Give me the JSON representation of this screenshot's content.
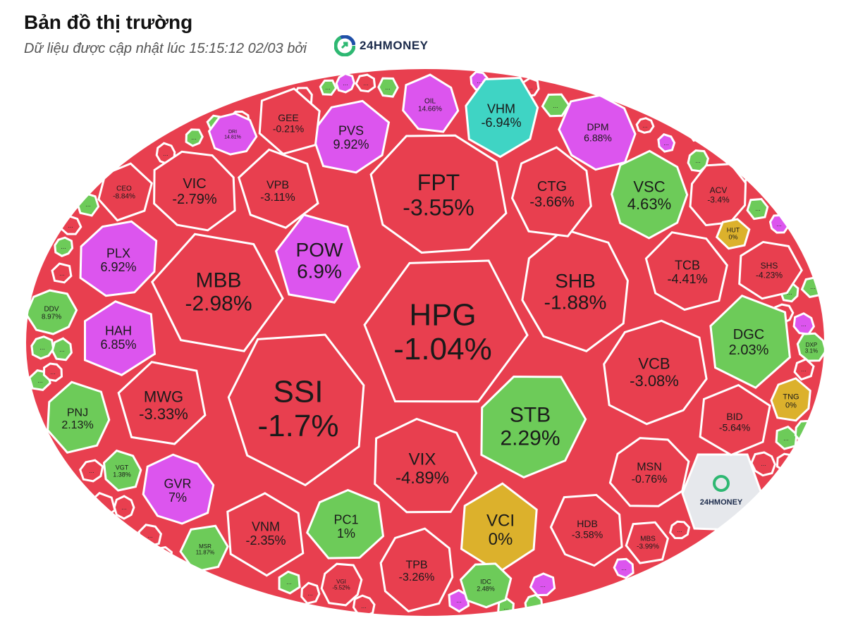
{
  "header": {
    "title": "Bản đồ thị trường",
    "subtitle": "Dữ liệu được cập nhật lúc 15:15:12 02/03 bởi",
    "brand": "24HMONEY"
  },
  "watermark": "24HMONEY",
  "colors": {
    "down": "#e83f4f",
    "up": "#6dcb59",
    "ceiling": "#dc55ee",
    "floor": "#3fd4c4",
    "flat": "#dcb12c",
    "watermark_bg": "#e6e8ec",
    "border": "#ffffff"
  },
  "chart_data": {
    "type": "treemap",
    "title": "Bản đồ thị trường",
    "cells": [
      {
        "ticker": "HPG",
        "change": "-1.04%",
        "status": "down"
      },
      {
        "ticker": "SSI",
        "change": "-1.7%",
        "status": "down"
      },
      {
        "ticker": "FPT",
        "change": "-3.55%",
        "status": "down"
      },
      {
        "ticker": "MBB",
        "change": "-2.98%",
        "status": "down"
      },
      {
        "ticker": "STB",
        "change": "2.29%",
        "status": "up"
      },
      {
        "ticker": "SHB",
        "change": "-1.88%",
        "status": "down"
      },
      {
        "ticker": "POW",
        "change": "6.9%",
        "status": "ceiling"
      },
      {
        "ticker": "VIX",
        "change": "-4.89%",
        "status": "down"
      },
      {
        "ticker": "VCB",
        "change": "-3.08%",
        "status": "down"
      },
      {
        "ticker": "MWG",
        "change": "-3.33%",
        "status": "down"
      },
      {
        "ticker": "CTG",
        "change": "-3.66%",
        "status": "down"
      },
      {
        "ticker": "VIC",
        "change": "-2.79%",
        "status": "down"
      },
      {
        "ticker": "VPB",
        "change": "-3.11%",
        "status": "down"
      },
      {
        "ticker": "PVS",
        "change": "9.92%",
        "status": "ceiling"
      },
      {
        "ticker": "VSC",
        "change": "4.63%",
        "status": "up"
      },
      {
        "ticker": "DGC",
        "change": "2.03%",
        "status": "up"
      },
      {
        "ticker": "TCB",
        "change": "-4.41%",
        "status": "down"
      },
      {
        "ticker": "PLX",
        "change": "6.92%",
        "status": "ceiling"
      },
      {
        "ticker": "HAH",
        "change": "6.85%",
        "status": "ceiling"
      },
      {
        "ticker": "PNJ",
        "change": "2.13%",
        "status": "up"
      },
      {
        "ticker": "GVR",
        "change": "7%",
        "status": "ceiling"
      },
      {
        "ticker": "VNM",
        "change": "-2.35%",
        "status": "down"
      },
      {
        "ticker": "PC1",
        "change": "1%",
        "status": "up"
      },
      {
        "ticker": "TPB",
        "change": "-3.26%",
        "status": "down"
      },
      {
        "ticker": "VCI",
        "change": "0%",
        "status": "flat"
      },
      {
        "ticker": "HDB",
        "change": "-3.58%",
        "status": "down"
      },
      {
        "ticker": "MSN",
        "change": "-0.76%",
        "status": "down"
      },
      {
        "ticker": "BID",
        "change": "-5.64%",
        "status": "down"
      },
      {
        "ticker": "VHM",
        "change": "-6.94%",
        "status": "floor"
      },
      {
        "ticker": "DPM",
        "change": "6.88%",
        "status": "ceiling"
      },
      {
        "ticker": "GEE",
        "change": "-0.21%",
        "status": "down"
      },
      {
        "ticker": "SHS",
        "change": "-4.23%",
        "status": "down"
      },
      {
        "ticker": "ACV",
        "change": "-3.4%",
        "status": "down"
      },
      {
        "ticker": "CEO",
        "change": "-8.84%",
        "status": "down"
      },
      {
        "ticker": "OIL",
        "change": "14.66%",
        "status": "ceiling"
      },
      {
        "ticker": "DDV",
        "change": "8.97%",
        "status": "up"
      },
      {
        "ticker": "HUT",
        "change": "0%",
        "status": "flat"
      },
      {
        "ticker": "TNG",
        "change": "0%",
        "status": "flat"
      },
      {
        "ticker": "DXP",
        "change": "3.1%",
        "status": "up"
      },
      {
        "ticker": "MBS",
        "change": "-3.99%",
        "status": "down"
      },
      {
        "ticker": "IDC",
        "change": "2.48%",
        "status": "up"
      },
      {
        "ticker": "VGI",
        "change": "-5.52%",
        "status": "down"
      },
      {
        "ticker": "MSR",
        "change": "11.87%",
        "status": "up"
      },
      {
        "ticker": "VGT",
        "change": "1.38%",
        "status": "up"
      },
      {
        "ticker": "DRI",
        "change": "14.81%",
        "status": "ceiling"
      }
    ],
    "minor_cells": [
      {
        "label": "...",
        "status": "up"
      },
      {
        "label": "...",
        "status": "up"
      },
      {
        "label": "...",
        "status": "up"
      },
      {
        "label": "...",
        "status": "down"
      },
      {
        "label": "...",
        "status": "down"
      },
      {
        "label": "...",
        "status": "down"
      },
      {
        "label": "...",
        "status": "down"
      },
      {
        "label": "...",
        "status": "ceiling"
      },
      {
        "label": "...",
        "status": "down"
      },
      {
        "label": "...",
        "status": "down"
      },
      {
        "label": "...",
        "status": "up"
      },
      {
        "label": "...",
        "status": "down"
      },
      {
        "label": "...",
        "status": "down"
      },
      {
        "label": "...",
        "status": "ceiling"
      },
      {
        "label": "...",
        "status": "ceiling"
      },
      {
        "label": "...",
        "status": "up"
      },
      {
        "label": "...",
        "status": "up"
      },
      {
        "label": "...",
        "status": "ceiling"
      },
      {
        "label": "...",
        "status": "down"
      },
      {
        "label": "...",
        "status": "up"
      },
      {
        "label": "...",
        "status": "up"
      },
      {
        "label": "...",
        "status": "down"
      },
      {
        "label": "...",
        "status": "up"
      },
      {
        "label": "...",
        "status": "down"
      },
      {
        "label": "...",
        "status": "up"
      },
      {
        "label": "...",
        "status": "down"
      },
      {
        "label": "...",
        "status": "ceiling"
      },
      {
        "label": "...",
        "status": "down"
      },
      {
        "label": "...",
        "status": "up"
      },
      {
        "label": "...",
        "status": "up"
      },
      {
        "label": "...",
        "status": "ceiling"
      },
      {
        "label": "...",
        "status": "up"
      },
      {
        "label": "...",
        "status": "down"
      },
      {
        "label": "...",
        "status": "up"
      },
      {
        "label": "...",
        "status": "down"
      },
      {
        "label": "...",
        "status": "ceiling"
      },
      {
        "label": "...",
        "status": "down"
      },
      {
        "label": "...",
        "status": "up"
      },
      {
        "label": "...",
        "status": "down"
      },
      {
        "label": "...",
        "status": "ceiling"
      },
      {
        "label": "...",
        "status": "up"
      },
      {
        "label": "...",
        "status": "down"
      },
      {
        "label": "...",
        "status": "ceiling"
      },
      {
        "label": "...",
        "status": "up"
      },
      {
        "label": "...",
        "status": "down"
      },
      {
        "label": "...",
        "status": "down"
      },
      {
        "label": "...",
        "status": "up"
      },
      {
        "label": "...",
        "status": "up"
      },
      {
        "label": "...",
        "status": "down"
      },
      {
        "label": "...",
        "status": "up"
      },
      {
        "label": "...",
        "status": "down"
      },
      {
        "label": "...",
        "status": "up"
      },
      {
        "label": "...",
        "status": "down"
      },
      {
        "label": "...",
        "status": "up"
      },
      {
        "label": "...",
        "status": "up"
      },
      {
        "label": "...",
        "status": "down"
      }
    ]
  }
}
